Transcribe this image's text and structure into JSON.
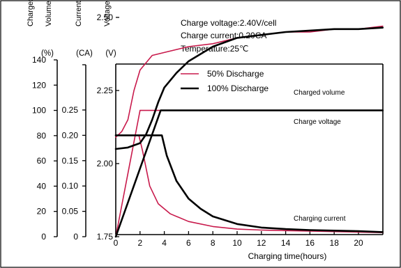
{
  "chart_data": {
    "type": "line",
    "axis_headers": {
      "volume": "Charged Volume",
      "current": "Current",
      "voltage": "Voltage"
    },
    "axis_units": {
      "volume": "(%)",
      "current": "(CA)",
      "voltage": "(V)"
    },
    "conditions": [
      {
        "label": "Charge voltage:2.40V/cell"
      },
      {
        "label": "Charge current:0.20CA"
      },
      {
        "label": "Temperature:25℃"
      }
    ],
    "xlabel": "Charging time(hours)",
    "xlim": [
      0,
      22
    ],
    "xticks": [
      0,
      2,
      4,
      6,
      8,
      10,
      12,
      14,
      16,
      18,
      20
    ],
    "volume_axis": {
      "ticks": [
        0,
        20,
        40,
        60,
        80,
        100,
        120,
        140
      ],
      "lim": [
        0,
        140
      ]
    },
    "current_axis": {
      "ticks": [
        0,
        0.05,
        0.1,
        0.15,
        0.2,
        0.25
      ],
      "tick_labels": [
        "0",
        "0.05",
        "0.10",
        "0.15",
        "0.20",
        "0.25"
      ],
      "lim": [
        0,
        0.3
      ]
    },
    "voltage_axis": {
      "ticks": [
        1.75,
        2.0,
        2.25,
        2.5
      ],
      "tick_labels": [
        "1.75",
        "2.00",
        "2.25",
        "2.50"
      ],
      "lim": [
        1.75,
        2.7
      ]
    },
    "legend": {
      "placement": "top-center",
      "entries": [
        {
          "name": "50% Discharge",
          "color": "#c8194b"
        },
        {
          "name": "100% Discharge",
          "color": "#000000"
        }
      ]
    },
    "curve_labels": [
      {
        "text": "Charged volume"
      },
      {
        "text": "Charge voltage"
      },
      {
        "text": "Charging current"
      }
    ],
    "series": [
      {
        "discharge": "50%",
        "quantity": "Charge voltage",
        "axis": "voltage",
        "color": "#c8194b",
        "x": [
          0,
          0.5,
          1.0,
          1.5,
          2.0,
          3.0,
          4.0,
          6.0,
          8.0,
          10.0,
          12.0,
          14.0,
          16.0,
          18.0,
          20.0,
          22.0
        ],
        "y": [
          2.09,
          2.11,
          2.15,
          2.25,
          2.32,
          2.37,
          2.38,
          2.4,
          2.41,
          2.43,
          2.44,
          2.45,
          2.45,
          2.46,
          2.46,
          2.47
        ]
      },
      {
        "discharge": "50%",
        "quantity": "Charged volume",
        "axis": "volume",
        "color": "#c8194b",
        "x": [
          0,
          0.5,
          1.0,
          1.5,
          2.0,
          22.0
        ],
        "y": [
          0,
          25,
          50,
          75,
          100,
          100
        ]
      },
      {
        "discharge": "50%",
        "quantity": "Charging current",
        "axis": "current",
        "color": "#c8194b",
        "x": [
          0,
          1.0,
          1.5,
          1.9,
          2.2,
          2.8,
          3.5,
          4.5,
          6.0,
          8.0,
          10.0,
          12.0,
          14.0,
          16.0,
          18.0,
          20.0,
          22.0
        ],
        "y": [
          0.2,
          0.2,
          0.2,
          0.2,
          0.17,
          0.1,
          0.065,
          0.045,
          0.03,
          0.02,
          0.015,
          0.013,
          0.012,
          0.011,
          0.01,
          0.009,
          0.008
        ]
      },
      {
        "discharge": "100%",
        "quantity": "Charge voltage",
        "axis": "voltage",
        "color": "#000000",
        "x": [
          0,
          1.0,
          2.0,
          2.5,
          3.0,
          3.5,
          4.0,
          5.0,
          6.0,
          8.0,
          10.0,
          12.0,
          14.0,
          16.0,
          18.0,
          20.0,
          22.0
        ],
        "y": [
          2.05,
          2.055,
          2.07,
          2.1,
          2.15,
          2.21,
          2.26,
          2.31,
          2.35,
          2.4,
          2.43,
          2.44,
          2.45,
          2.455,
          2.46,
          2.46,
          2.465
        ]
      },
      {
        "discharge": "100%",
        "quantity": "Charged volume",
        "axis": "volume",
        "color": "#000000",
        "x": [
          0,
          1.0,
          2.0,
          3.0,
          3.7,
          4.0,
          22.0
        ],
        "y": [
          0,
          27,
          54,
          81,
          100,
          100,
          100
        ]
      },
      {
        "discharge": "100%",
        "quantity": "Charging current",
        "axis": "current",
        "color": "#000000",
        "x": [
          0,
          2.0,
          3.5,
          3.8,
          4.2,
          5.0,
          6.0,
          7.0,
          8.0,
          10.0,
          12.0,
          14.0,
          16.0,
          18.0,
          20.0,
          22.0
        ],
        "y": [
          0.2,
          0.2,
          0.2,
          0.2,
          0.16,
          0.11,
          0.075,
          0.055,
          0.04,
          0.025,
          0.018,
          0.015,
          0.013,
          0.012,
          0.011,
          0.009
        ]
      }
    ]
  }
}
